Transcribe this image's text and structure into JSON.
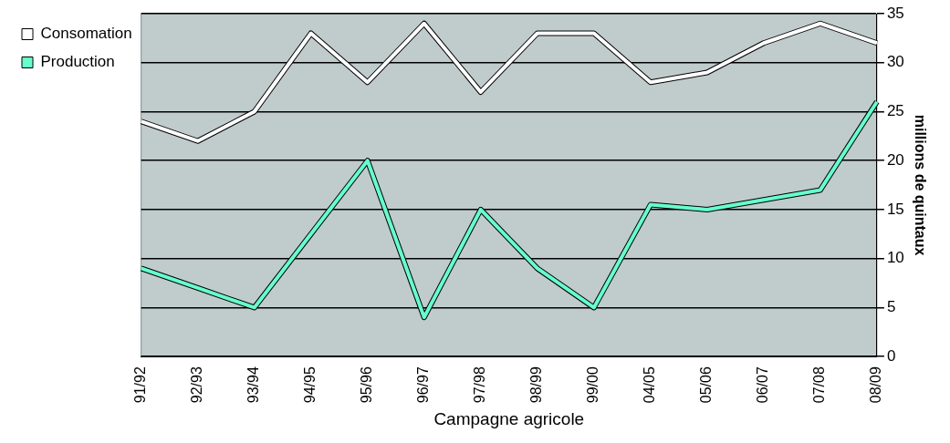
{
  "chart_data": {
    "type": "line",
    "xlabel": "Campagne agricole",
    "y2label": "millions de quintaux",
    "categories": [
      "91/92",
      "92/93",
      "93/94",
      "94/95",
      "95/96",
      "96/97",
      "97/98",
      "98/99",
      "99/00",
      "04/05",
      "05/06",
      "06/07",
      "07/08",
      "08/09"
    ],
    "series": [
      {
        "name": "Consomation",
        "color": "#ffffff",
        "axis": "y2",
        "values": [
          24,
          22,
          25,
          33,
          28,
          34,
          27,
          33,
          33,
          28,
          29,
          32,
          34,
          32
        ]
      },
      {
        "name": "Production",
        "color": "#66ffcc",
        "axis": "y2",
        "values": [
          9,
          7,
          5,
          12.5,
          20,
          4,
          15,
          9,
          5,
          15.5,
          15,
          16,
          17,
          26
        ]
      }
    ],
    "y2lim": [
      0,
      35
    ],
    "y2ticks": [
      0,
      5,
      10,
      15,
      20,
      25,
      30,
      35
    ],
    "grid": "y",
    "legend": "top left",
    "marker": "none"
  }
}
